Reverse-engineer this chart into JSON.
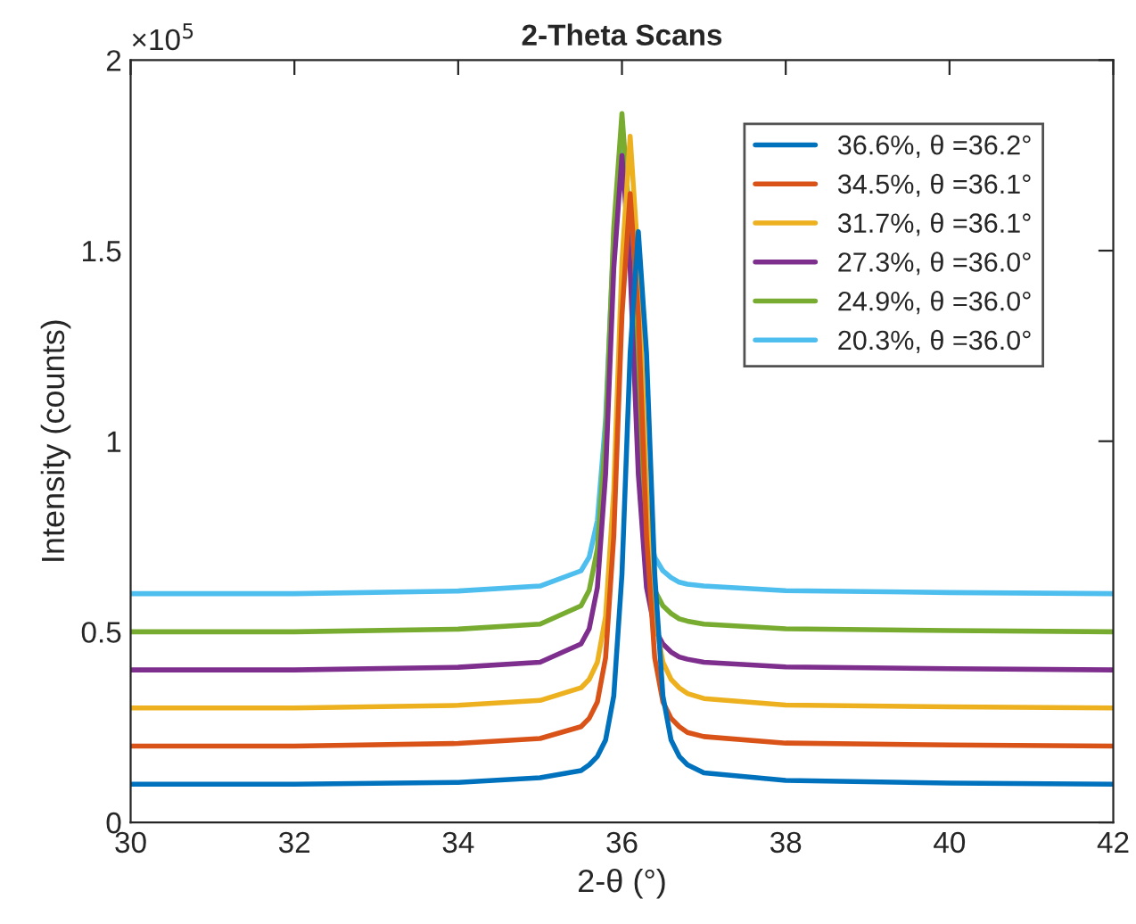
{
  "chart_data": {
    "type": "line",
    "title": "2-Theta Scans",
    "xlabel": "2-θ (°)",
    "ylabel": "Intensity (counts)",
    "annotations": [
      "×10$^{5}$"
    ],
    "x": [
      30,
      32,
      34,
      35,
      35.5,
      35.6,
      35.7,
      35.8,
      35.9,
      36.0,
      36.1,
      36.2,
      36.3,
      36.4,
      36.5,
      36.6,
      36.7,
      36.8,
      37,
      38,
      40,
      42
    ],
    "series": [
      {
        "name": "36.6%, θ =36.2°",
        "color": "#0072bd",
        "values": [
          0.1,
          0.1,
          0.105,
          0.117,
          0.136,
          0.151,
          0.173,
          0.216,
          0.332,
          0.651,
          1.231,
          1.55,
          1.231,
          0.651,
          0.332,
          0.216,
          0.173,
          0.151,
          0.13,
          0.11,
          0.103,
          0.1
        ]
      },
      {
        "name": "34.5%, θ =36.1°",
        "color": "#d95319",
        "values": [
          0.2,
          0.2,
          0.207,
          0.22,
          0.251,
          0.273,
          0.316,
          0.432,
          0.751,
          1.331,
          1.65,
          1.331,
          0.751,
          0.432,
          0.316,
          0.273,
          0.251,
          0.236,
          0.225,
          0.208,
          0.203,
          0.2
        ]
      },
      {
        "name": "31.7%, θ =36.1°",
        "color": "#edb120",
        "values": [
          0.3,
          0.3,
          0.307,
          0.32,
          0.353,
          0.375,
          0.42,
          0.54,
          0.87,
          1.47,
          1.8,
          1.47,
          0.87,
          0.54,
          0.42,
          0.375,
          0.353,
          0.338,
          0.325,
          0.308,
          0.303,
          0.3
        ]
      },
      {
        "name": "27.3%, θ =36.0°",
        "color": "#7e2f8e",
        "values": [
          0.4,
          0.4,
          0.407,
          0.42,
          0.468,
          0.508,
          0.616,
          0.913,
          1.453,
          1.75,
          1.453,
          0.913,
          0.616,
          0.508,
          0.468,
          0.447,
          0.434,
          0.428,
          0.42,
          0.408,
          0.403,
          0.4
        ]
      },
      {
        "name": "24.9%, θ =36.0°",
        "color": "#77ac30",
        "values": [
          0.5,
          0.5,
          0.507,
          0.52,
          0.568,
          0.609,
          0.718,
          1.017,
          1.56,
          1.86,
          1.56,
          1.017,
          0.718,
          0.609,
          0.568,
          0.548,
          0.534,
          0.528,
          0.52,
          0.508,
          0.503,
          0.5
        ]
      },
      {
        "name": "20.3%, θ =36.0°",
        "color": "#4dbeee",
        "values": [
          0.6,
          0.6,
          0.607,
          0.62,
          0.66,
          0.696,
          0.792,
          1.056,
          1.536,
          1.8,
          1.536,
          1.056,
          0.792,
          0.696,
          0.66,
          0.642,
          0.63,
          0.625,
          0.62,
          0.608,
          0.603,
          0.6
        ]
      }
    ],
    "xlim": [
      30,
      42
    ],
    "xticks": [
      30,
      32,
      34,
      36,
      38,
      40,
      42
    ],
    "ylim": [
      0,
      2
    ],
    "yticks": [
      0,
      0.5,
      1,
      1.5,
      2
    ],
    "grid": false,
    "legend": "top right",
    "line_style": "solid",
    "marker": "none"
  }
}
